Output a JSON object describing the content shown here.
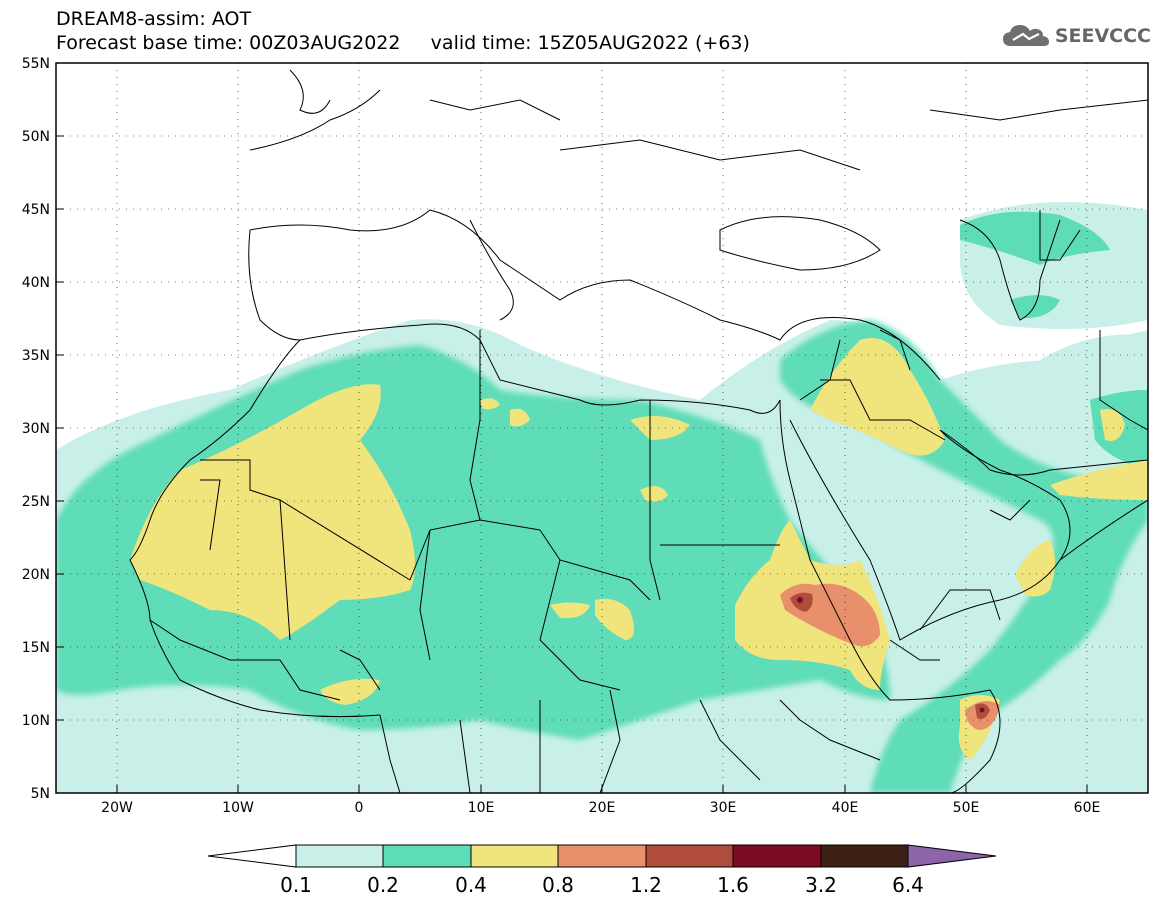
{
  "header": {
    "title_line1": "DREAM8-assim: AOT",
    "title_line2": "Forecast base time: 00Z03AUG2022     valid time: 15Z05AUG2022 (+63)",
    "logo_text": "SEEVCCC",
    "logo_icon": "cloud-icon"
  },
  "map": {
    "projection": "lat-lon",
    "lon_range": [
      -25,
      65
    ],
    "lat_range": [
      5,
      55
    ],
    "lat_ticks": [
      "55N",
      "50N",
      "45N",
      "40N",
      "35N",
      "30N",
      "25N",
      "20N",
      "15N",
      "10N",
      "5N"
    ],
    "lon_ticks": [
      "20W",
      "10W",
      "0",
      "10E",
      "20E",
      "30E",
      "40E",
      "50E",
      "60E"
    ],
    "variable": "AOT"
  },
  "colorbar": {
    "thresholds": [
      "0.1",
      "0.2",
      "0.4",
      "0.8",
      "1.2",
      "1.6",
      "3.2",
      "6.4"
    ],
    "colors": [
      "#c8f0e8",
      "#5edcb8",
      "#f0e47c",
      "#e8906c",
      "#b04c3c",
      "#7c0c24",
      "#3c2014",
      "#8c64a8"
    ],
    "under_color": "#ffffff"
  }
}
